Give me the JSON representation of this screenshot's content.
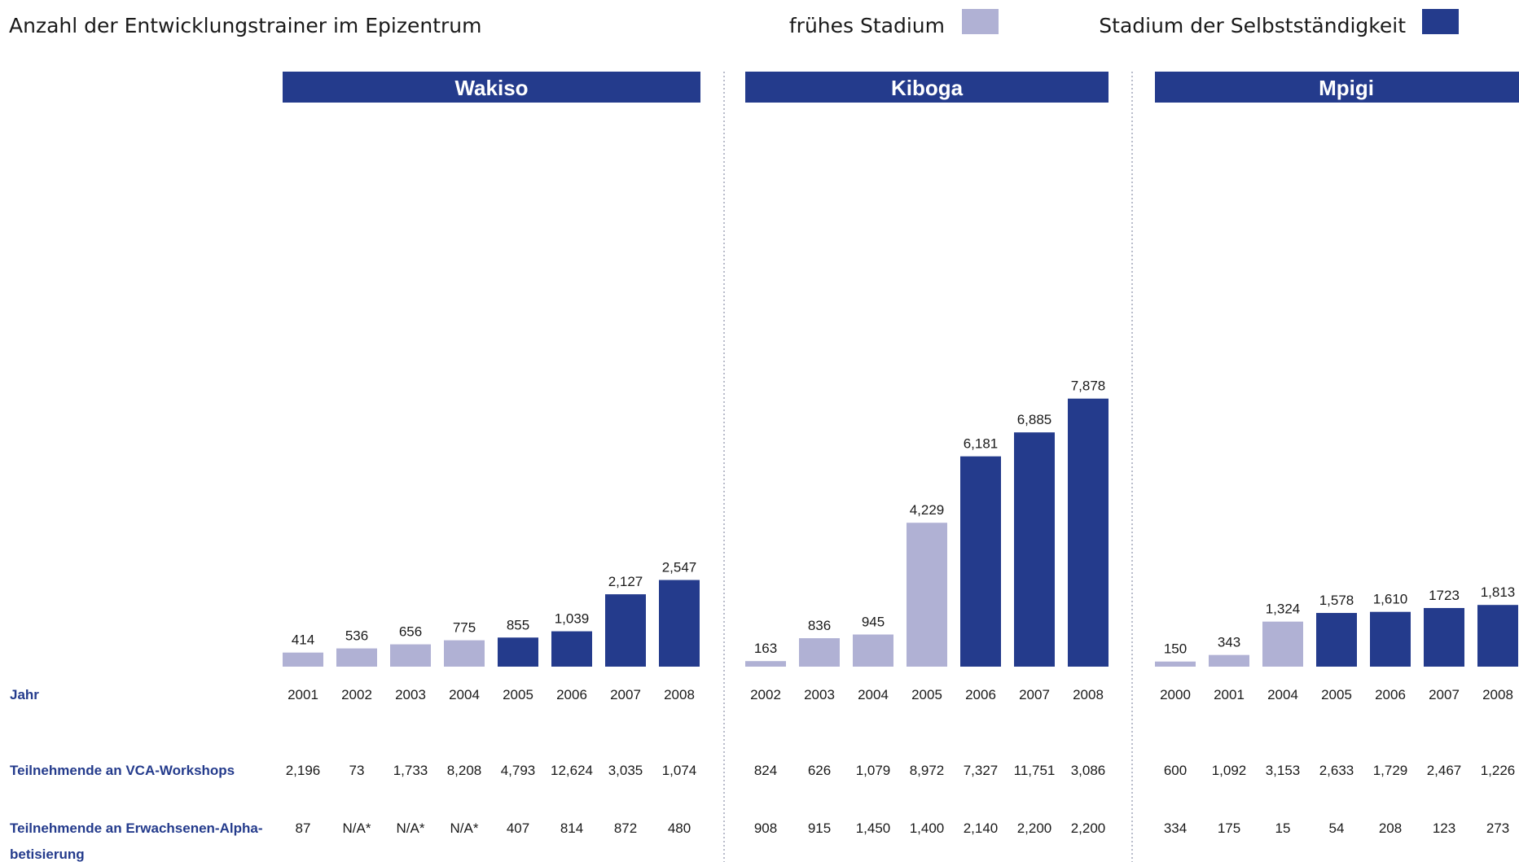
{
  "chart_data": {
    "type": "bar",
    "title": "Anzahl der Entwicklungstrainer im Epizentrum",
    "legend": [
      {
        "name": "frühes Stadium",
        "color": "#b0b1d4"
      },
      {
        "name": "Stadium der Selbstständigkeit",
        "color": "#243b8c"
      }
    ],
    "legend_position": "top-right",
    "grid": false,
    "row_labels": {
      "year": "Jahr",
      "vca": "Teilnehmende an VCA-Workshops",
      "literacy_line1": "Teilnehmende an Erwachsenen-Alpha-",
      "literacy_line2": "betisierung"
    },
    "panels": [
      {
        "name": "Wakiso",
        "years": [
          "2001",
          "2002",
          "2003",
          "2004",
          "2005",
          "2006",
          "2007",
          "2008"
        ],
        "values": [
          414,
          536,
          656,
          775,
          855,
          1039,
          2127,
          2547
        ],
        "value_labels": [
          "414",
          "536",
          "656",
          "775",
          "855",
          "1,039",
          "2,127",
          "2,547"
        ],
        "stage": [
          "early",
          "early",
          "early",
          "early",
          "self",
          "self",
          "self",
          "self"
        ],
        "vca_workshops": [
          "2,196",
          "73",
          "1,733",
          "8,208",
          "4,793",
          "12,624",
          "3,035",
          "1,074"
        ],
        "adult_literacy": [
          "87",
          "N/A*",
          "N/A*",
          "N/A*",
          "407",
          "814",
          "872",
          "480"
        ]
      },
      {
        "name": "Kiboga",
        "years": [
          "2002",
          "2003",
          "2004",
          "2005",
          "2006",
          "2007",
          "2008"
        ],
        "values": [
          163,
          836,
          945,
          4229,
          6181,
          6885,
          7878
        ],
        "value_labels": [
          "163",
          "836",
          "945",
          "4,229",
          "6,181",
          "6,885",
          "7,878"
        ],
        "stage": [
          "early",
          "early",
          "early",
          "early",
          "self",
          "self",
          "self"
        ],
        "vca_workshops": [
          "824",
          "626",
          "1,079",
          "8,972",
          "7,327",
          "11,751",
          "3,086"
        ],
        "adult_literacy": [
          "908",
          "915",
          "1,450",
          "1,400",
          "2,140",
          "2,200",
          "2,200"
        ]
      },
      {
        "name": "Mpigi",
        "years": [
          "2000",
          "2001",
          "2004",
          "2005",
          "2006",
          "2007",
          "2008"
        ],
        "values": [
          150,
          343,
          1324,
          1578,
          1610,
          1723,
          1813
        ],
        "value_labels": [
          "150",
          "343",
          "1,324",
          "1,578",
          "1,610",
          "1723",
          "1,813"
        ],
        "stage": [
          "early",
          "early",
          "early",
          "self",
          "self",
          "self",
          "self"
        ],
        "vca_workshops": [
          "600",
          "1,092",
          "3,153",
          "2,633",
          "1,729",
          "2,467",
          "1,226"
        ],
        "adult_literacy": [
          "334",
          "175",
          "15",
          "54",
          "208",
          "123",
          "273"
        ]
      }
    ]
  }
}
